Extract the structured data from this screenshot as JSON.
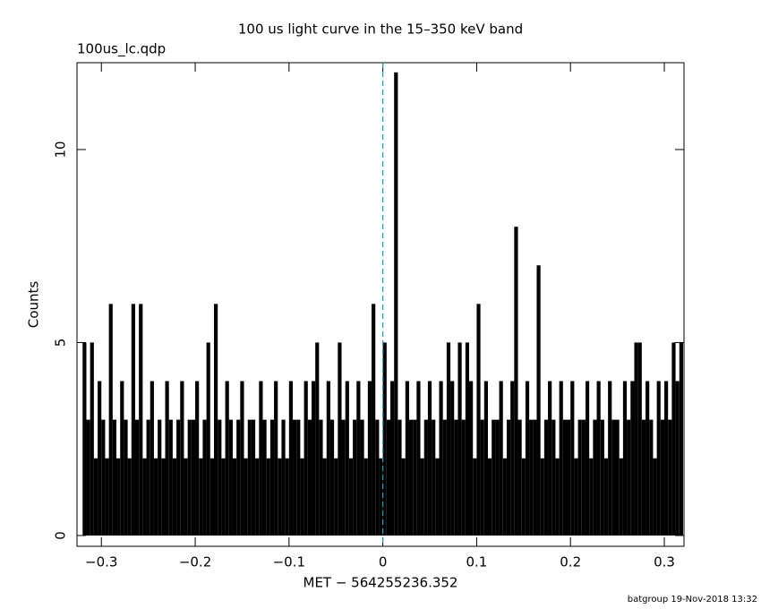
{
  "chart_data": {
    "type": "histogram",
    "title": "100 us light curve in the 15–350 keV band",
    "subtitle": "100us_lc.qdp",
    "x_label": "MET − 564255236.352",
    "y_label": "Counts",
    "footer": "batgroup 19-Nov-2018 13:32",
    "color": "#000000",
    "vline": {
      "x": 0,
      "color": "#1a9fbf"
    },
    "xlim": [
      -0.326,
      0.321
    ],
    "ylim": [
      -0.28,
      12.25
    ],
    "xticks": [
      {
        "value": -0.3,
        "label": "−0.3"
      },
      {
        "value": -0.2,
        "label": "−0.2"
      },
      {
        "value": -0.1,
        "label": "−0.1"
      },
      0,
      0.1,
      0.2,
      0.3
    ],
    "yticks": [
      0,
      5,
      10
    ],
    "bins": [
      -0.32,
      -0.316,
      -0.312,
      -0.308,
      -0.304,
      -0.3,
      -0.296,
      -0.292,
      -0.288,
      -0.284,
      -0.28,
      -0.276,
      -0.272,
      -0.268,
      -0.264,
      -0.26,
      -0.256,
      -0.252,
      -0.248,
      -0.244,
      -0.24,
      -0.236,
      -0.232,
      -0.228,
      -0.224,
      -0.22,
      -0.216,
      -0.212,
      -0.208,
      -0.204,
      -0.2,
      -0.196,
      -0.192,
      -0.188,
      -0.184,
      -0.18,
      -0.176,
      -0.172,
      -0.168,
      -0.164,
      -0.16,
      -0.156,
      -0.152,
      -0.148,
      -0.144,
      -0.14,
      -0.136,
      -0.132,
      -0.128,
      -0.124,
      -0.12,
      -0.116,
      -0.112,
      -0.108,
      -0.104,
      -0.1,
      -0.096,
      -0.092,
      -0.088,
      -0.084,
      -0.08,
      -0.076,
      -0.072,
      -0.068,
      -0.064,
      -0.06,
      -0.056,
      -0.052,
      -0.048,
      -0.044,
      -0.04,
      -0.036,
      -0.032,
      -0.028,
      -0.024,
      -0.02,
      -0.016,
      -0.012,
      -0.008,
      -0.004,
      0,
      0.004,
      0.008,
      0.012,
      0.016,
      0.02,
      0.024,
      0.028,
      0.032,
      0.036,
      0.04,
      0.044,
      0.048,
      0.052,
      0.056,
      0.06,
      0.064,
      0.068,
      0.072,
      0.076,
      0.08,
      0.084,
      0.088,
      0.092,
      0.096,
      0.1,
      0.104,
      0.108,
      0.112,
      0.116,
      0.12,
      0.124,
      0.128,
      0.132,
      0.136,
      0.14,
      0.144,
      0.148,
      0.152,
      0.156,
      0.16,
      0.164,
      0.168,
      0.172,
      0.176,
      0.18,
      0.184,
      0.188,
      0.192,
      0.196,
      0.2,
      0.204,
      0.208,
      0.212,
      0.216,
      0.22,
      0.224,
      0.228,
      0.232,
      0.236,
      0.24,
      0.244,
      0.248,
      0.252,
      0.256,
      0.26,
      0.264,
      0.268,
      0.272,
      0.276,
      0.28,
      0.284,
      0.288,
      0.292,
      0.296,
      0.3,
      0.304,
      0.308,
      0.312,
      0.316,
      0.32
    ],
    "values": [
      5,
      3,
      5,
      2,
      4,
      3,
      2,
      6,
      3,
      2,
      4,
      3,
      2,
      6,
      3,
      6,
      2,
      3,
      4,
      2,
      3,
      2,
      4,
      3,
      2,
      3,
      4,
      2,
      3,
      3,
      4,
      2,
      3,
      5,
      2,
      6,
      3,
      2,
      4,
      3,
      2,
      3,
      4,
      2,
      3,
      3,
      2,
      4,
      3,
      2,
      3,
      4,
      2,
      3,
      2,
      4,
      3,
      3,
      2,
      4,
      3,
      4,
      5,
      3,
      2,
      4,
      3,
      2,
      5,
      3,
      4,
      2,
      3,
      4,
      3,
      2,
      4,
      6,
      3,
      2,
      5,
      3,
      4,
      12,
      3,
      2,
      4,
      3,
      3,
      4,
      2,
      3,
      4,
      3,
      2,
      4,
      3,
      5,
      4,
      3,
      5,
      3,
      5,
      4,
      2,
      6,
      3,
      4,
      2,
      3,
      3,
      4,
      2,
      3,
      4,
      8,
      3,
      2,
      4,
      3,
      3,
      7,
      2,
      3,
      4,
      3,
      2,
      4,
      3,
      3,
      4,
      2,
      3,
      3,
      4,
      2,
      3,
      4,
      3,
      2,
      4,
      3,
      3,
      2,
      4,
      3,
      4,
      5,
      5,
      3,
      4,
      3,
      2,
      4,
      3,
      4,
      3,
      5,
      4,
      5
    ]
  }
}
